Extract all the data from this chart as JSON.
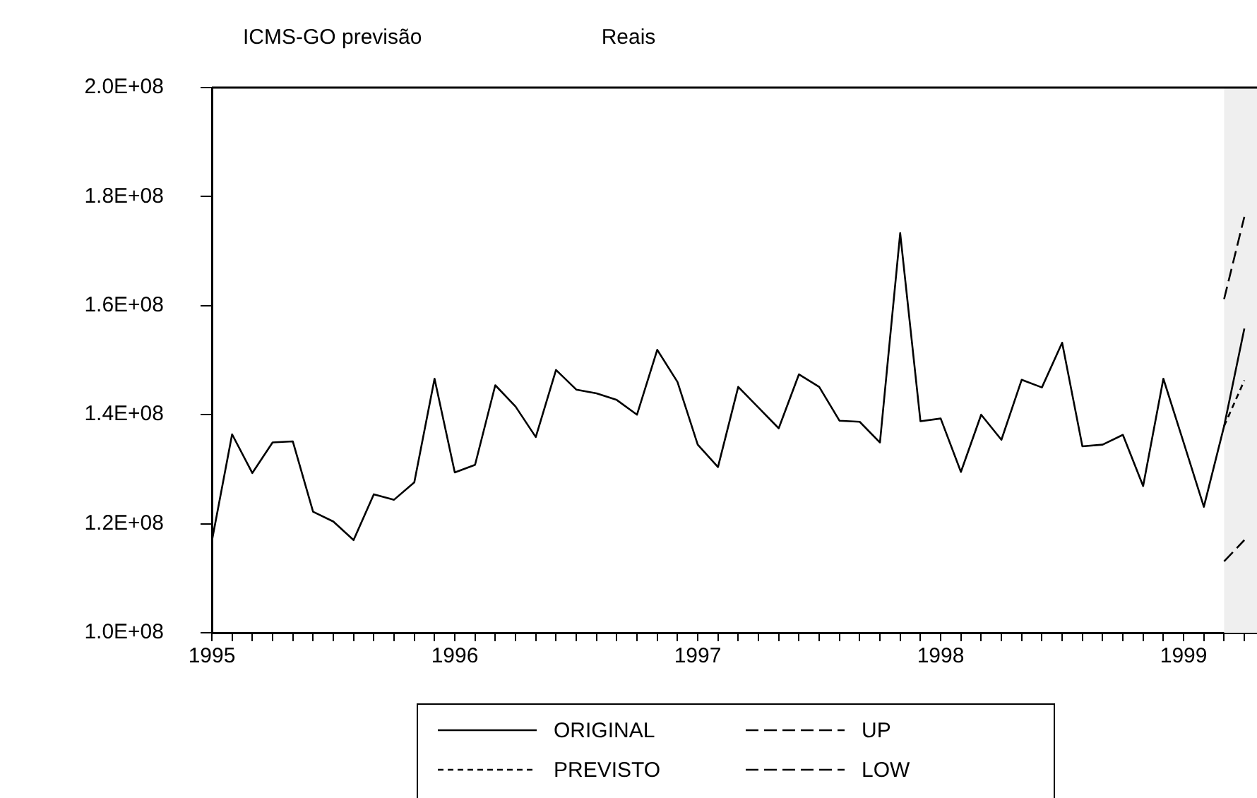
{
  "chart_data": {
    "type": "line",
    "title": "ICMS-GO previsão",
    "ylabel": "Reais",
    "x": [
      "1995-01",
      "1995-02",
      "1995-03",
      "1995-04",
      "1995-05",
      "1995-06",
      "1995-07",
      "1995-08",
      "1995-09",
      "1995-10",
      "1995-11",
      "1995-12",
      "1996-01",
      "1996-02",
      "1996-03",
      "1996-04",
      "1996-05",
      "1996-06",
      "1996-07",
      "1996-08",
      "1996-09",
      "1996-10",
      "1996-11",
      "1996-12",
      "1997-01",
      "1997-02",
      "1997-03",
      "1997-04",
      "1997-05",
      "1997-06",
      "1997-07",
      "1997-08",
      "1997-09",
      "1997-10",
      "1997-11",
      "1997-12",
      "1998-01",
      "1998-02",
      "1998-03",
      "1998-04",
      "1998-05",
      "1998-06",
      "1998-07",
      "1998-08",
      "1998-09",
      "1998-10",
      "1998-11",
      "1998-12",
      "1999-01",
      "1999-02",
      "1999-03",
      "1999-04"
    ],
    "series": [
      {
        "name": "ORIGINAL",
        "color": "#000000",
        "line_style": "solid",
        "values": [
          116800000,
          136400000,
          129300000,
          134900000,
          135100000,
          122200000,
          120400000,
          117000000,
          125400000,
          124400000,
          127600000,
          146600000,
          129400000,
          130800000,
          145400000,
          141500000,
          135900000,
          148200000,
          144600000,
          143900000,
          142700000,
          140000000,
          151900000,
          146000000,
          134500000,
          130400000,
          145100000,
          141300000,
          137500000,
          147400000,
          145100000,
          138900000,
          138700000,
          134900000,
          173300000,
          138800000,
          139300000,
          129500000,
          140000000,
          135400000,
          146400000,
          145000000,
          153200000,
          134200000,
          134500000,
          136300000,
          126900000,
          146600000,
          134900000,
          123100000,
          137900000,
          155800000
        ]
      },
      {
        "name": "PREVISTO",
        "color": "#000000",
        "line_style": "dotted",
        "values": [
          null,
          null,
          null,
          null,
          null,
          null,
          null,
          null,
          null,
          null,
          null,
          null,
          null,
          null,
          null,
          null,
          null,
          null,
          null,
          null,
          null,
          null,
          null,
          null,
          null,
          null,
          null,
          null,
          null,
          null,
          null,
          null,
          null,
          null,
          null,
          null,
          null,
          null,
          null,
          null,
          null,
          null,
          null,
          null,
          null,
          null,
          null,
          null,
          null,
          null,
          137900000,
          146300000
        ]
      },
      {
        "name": "UP",
        "color": "#000000",
        "line_style": "dashed",
        "values": [
          null,
          null,
          null,
          null,
          null,
          null,
          null,
          null,
          null,
          null,
          null,
          null,
          null,
          null,
          null,
          null,
          null,
          null,
          null,
          null,
          null,
          null,
          null,
          null,
          null,
          null,
          null,
          null,
          null,
          null,
          null,
          null,
          null,
          null,
          null,
          null,
          null,
          null,
          null,
          null,
          null,
          null,
          null,
          null,
          null,
          null,
          null,
          null,
          null,
          null,
          161200000,
          176300000
        ]
      },
      {
        "name": "LOW",
        "color": "#000000",
        "line_style": "dashed",
        "values": [
          null,
          null,
          null,
          null,
          null,
          null,
          null,
          null,
          null,
          null,
          null,
          null,
          null,
          null,
          null,
          null,
          null,
          null,
          null,
          null,
          null,
          null,
          null,
          null,
          null,
          null,
          null,
          null,
          null,
          null,
          null,
          null,
          null,
          null,
          null,
          null,
          null,
          null,
          null,
          null,
          null,
          null,
          null,
          null,
          null,
          null,
          null,
          null,
          null,
          null,
          113100000,
          117000000
        ]
      }
    ],
    "xlim": [
      "1995-01",
      "1999-04-20"
    ],
    "xticks": [
      {
        "value": "1995",
        "label": "1995"
      },
      {
        "value": "1995-02",
        "label": null
      },
      {
        "value": "1995-03",
        "label": null
      },
      {
        "value": "1995-04",
        "label": null
      },
      {
        "value": "1995-05",
        "label": null
      },
      {
        "value": "1995-06",
        "label": null
      },
      {
        "value": "1995-07",
        "label": null
      },
      {
        "value": "1995-08",
        "label": null
      },
      {
        "value": "1995-09",
        "label": null
      },
      {
        "value": "1995-10",
        "label": null
      },
      {
        "value": "1995-11",
        "label": null
      },
      {
        "value": "1995-12",
        "label": null
      },
      {
        "value": "1996",
        "label": "1996"
      },
      {
        "value": "1996-02",
        "label": null
      },
      {
        "value": "1996-03",
        "label": null
      },
      {
        "value": "1996-04",
        "label": null
      },
      {
        "value": "1996-05",
        "label": null
      },
      {
        "value": "1996-06",
        "label": null
      },
      {
        "value": "1996-07",
        "label": null
      },
      {
        "value": "1996-08",
        "label": null
      },
      {
        "value": "1996-09",
        "label": null
      },
      {
        "value": "1996-10",
        "label": null
      },
      {
        "value": "1996-11",
        "label": null
      },
      {
        "value": "1996-12",
        "label": null
      },
      {
        "value": "1997",
        "label": "1997"
      },
      {
        "value": "1997-02",
        "label": null
      },
      {
        "value": "1997-03",
        "label": null
      },
      {
        "value": "1997-04",
        "label": null
      },
      {
        "value": "1997-05",
        "label": null
      },
      {
        "value": "1997-06",
        "label": null
      },
      {
        "value": "1997-07",
        "label": null
      },
      {
        "value": "1997-08",
        "label": null
      },
      {
        "value": "1997-09",
        "label": null
      },
      {
        "value": "1997-10",
        "label": null
      },
      {
        "value": "1997-11",
        "label": null
      },
      {
        "value": "1997-12",
        "label": null
      },
      {
        "value": "1998",
        "label": "1998"
      },
      {
        "value": "1998-02",
        "label": null
      },
      {
        "value": "1998-03",
        "label": null
      },
      {
        "value": "1998-04",
        "label": null
      },
      {
        "value": "1998-05",
        "label": null
      },
      {
        "value": "1998-06",
        "label": null
      },
      {
        "value": "1998-07",
        "label": null
      },
      {
        "value": "1998-08",
        "label": null
      },
      {
        "value": "1998-09",
        "label": null
      },
      {
        "value": "1998-10",
        "label": null
      },
      {
        "value": "1998-11",
        "label": null
      },
      {
        "value": "1998-12",
        "label": null
      },
      {
        "value": "1999",
        "label": "1999"
      },
      {
        "value": "1999-02",
        "label": null
      },
      {
        "value": "1999-03",
        "label": null
      },
      {
        "value": "1999-04",
        "label": null
      }
    ],
    "ylim": [
      100000000,
      200000000
    ],
    "yticks": [
      {
        "value": 100000000,
        "label": "1.0E+08"
      },
      {
        "value": 120000000,
        "label": "1.2E+08"
      },
      {
        "value": 140000000,
        "label": "1.4E+08"
      },
      {
        "value": 160000000,
        "label": "1.6E+08"
      },
      {
        "value": 180000000,
        "label": "1.8E+08"
      },
      {
        "value": 200000000,
        "label": "2.0E+08"
      }
    ],
    "bands": [
      {
        "axis": "x",
        "from": "1999-03",
        "to": "1999-04-20",
        "color": "#efefef"
      }
    ],
    "grid": false,
    "legend": "bottom",
    "marker": "none"
  }
}
